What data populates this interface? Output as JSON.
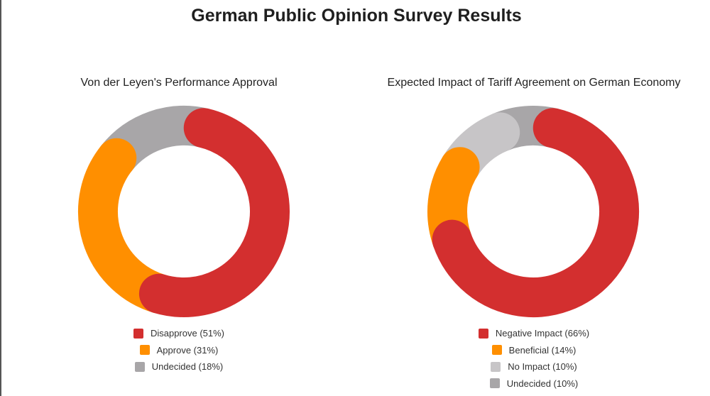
{
  "page": {
    "title": "German Public Opinion Survey Results"
  },
  "chart_data": [
    {
      "type": "pie",
      "donut": true,
      "title": "Von der Leyen's Performance Approval",
      "categories": [
        "Disapprove (51%)",
        "Approve (31%)",
        "Undecided (18%)"
      ],
      "values": [
        51,
        31,
        18
      ],
      "colors": [
        "#d32f2f",
        "#ff8f00",
        "#a8a6a8"
      ],
      "legend": "bottom"
    },
    {
      "type": "pie",
      "donut": true,
      "title": "Expected Impact of Tariff Agreement on German Economy",
      "categories": [
        "Negative Impact (66%)",
        "Beneficial (14%)",
        "No Impact (10%)",
        "Undecided (10%)"
      ],
      "values": [
        66,
        14,
        10,
        10
      ],
      "colors": [
        "#d32f2f",
        "#ff8f00",
        "#c7c5c7",
        "#a8a6a8"
      ],
      "legend": "bottom"
    }
  ]
}
